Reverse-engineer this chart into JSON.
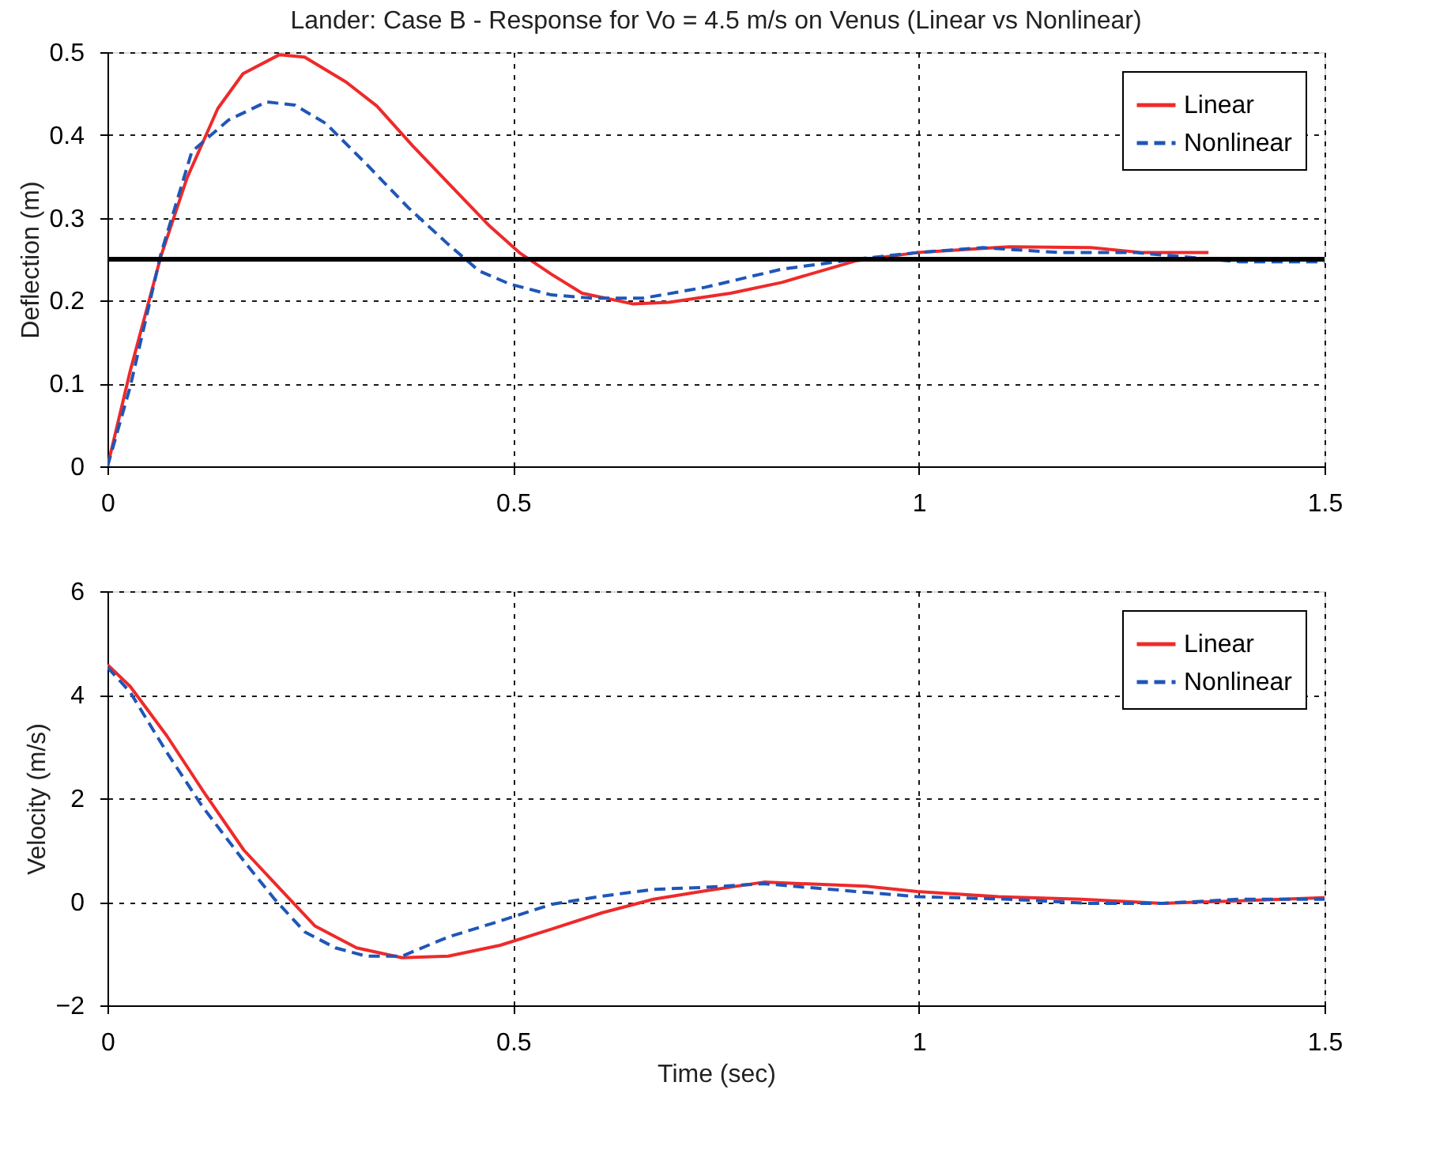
{
  "chart_data": [
    {
      "type": "line",
      "title": "Lander:  Case B - Response for Vo = 4.5 m/s on Venus (Linear vs Nonlinear)",
      "ylabel": "Deflection (m)",
      "xlim": [
        0,
        1.5
      ],
      "xticks": [
        0,
        0.5,
        1,
        1.5
      ],
      "ylim": [
        0,
        0.5
      ],
      "yticks": [
        0,
        0.1,
        0.2,
        0.3,
        0.4,
        0.5
      ],
      "grid": true,
      "legend": "top right",
      "ref_lines": [
        {
          "axis": "y",
          "value": 0.25,
          "color": "#000000"
        }
      ],
      "series": [
        {
          "name": "Linear",
          "color": "#ee2a2a",
          "line_style": "solid",
          "x": [
            0,
            0.028,
            0.066,
            0.098,
            0.136,
            0.167,
            0.212,
            0.243,
            0.294,
            0.332,
            0.376,
            0.42,
            0.471,
            0.509,
            0.547,
            0.585,
            0.648,
            0.692,
            0.768,
            0.831,
            0.922,
            0.998,
            1.111,
            1.212,
            1.276,
            1.357
          ],
          "values": [
            0,
            0.115,
            0.254,
            0.348,
            0.432,
            0.474,
            0.497,
            0.494,
            0.464,
            0.435,
            0.387,
            0.342,
            0.29,
            0.257,
            0.232,
            0.209,
            0.196,
            0.198,
            0.209,
            0.222,
            0.248,
            0.258,
            0.265,
            0.264,
            0.258,
            0.258
          ]
        },
        {
          "name": "Nonlinear",
          "color": "#1f56b8",
          "line_style": "dashed",
          "x": [
            0,
            0.028,
            0.066,
            0.104,
            0.149,
            0.196,
            0.231,
            0.269,
            0.319,
            0.37,
            0.42,
            0.458,
            0.496,
            0.547,
            0.597,
            0.66,
            0.736,
            0.831,
            0.922,
            0.998,
            1.079,
            1.174,
            1.268,
            1.395,
            1.5
          ],
          "values": [
            0,
            0.096,
            0.257,
            0.38,
            0.418,
            0.44,
            0.436,
            0.414,
            0.365,
            0.313,
            0.268,
            0.236,
            0.22,
            0.207,
            0.203,
            0.203,
            0.216,
            0.238,
            0.25,
            0.258,
            0.264,
            0.258,
            0.258,
            0.247,
            0.247
          ]
        }
      ]
    },
    {
      "type": "line",
      "xlabel": "Time (sec)",
      "ylabel": "Velocity (m/s)",
      "xlim": [
        0,
        1.5
      ],
      "xticks": [
        0,
        0.5,
        1,
        1.5
      ],
      "ylim": [
        -2,
        6
      ],
      "yticks": [
        -2,
        0,
        2,
        4,
        6
      ],
      "grid": true,
      "legend": "top right",
      "series": [
        {
          "name": "Linear",
          "color": "#ee2a2a",
          "line_style": "solid",
          "x": [
            0,
            0.028,
            0.073,
            0.117,
            0.168,
            0.212,
            0.256,
            0.307,
            0.363,
            0.42,
            0.484,
            0.547,
            0.61,
            0.673,
            0.736,
            0.809,
            0.935,
            0.998,
            1.098,
            1.2,
            1.3,
            1.395,
            1.5
          ],
          "values": [
            4.58,
            4.16,
            3.21,
            2.16,
            1.0,
            0.26,
            -0.47,
            -0.89,
            -1.08,
            -1.05,
            -0.84,
            -0.53,
            -0.21,
            0.05,
            0.21,
            0.38,
            0.3,
            0.2,
            0.1,
            0.05,
            -0.03,
            0.02,
            0.08
          ]
        },
        {
          "name": "Nonlinear",
          "color": "#1f56b8",
          "line_style": "dashed",
          "x": [
            0,
            0.028,
            0.073,
            0.117,
            0.168,
            0.206,
            0.243,
            0.281,
            0.319,
            0.363,
            0.42,
            0.484,
            0.547,
            0.61,
            0.673,
            0.736,
            0.809,
            0.922,
            0.998,
            1.11,
            1.21,
            1.3,
            1.395,
            1.5
          ],
          "values": [
            4.53,
            4.05,
            2.89,
            1.84,
            0.79,
            0.05,
            -0.58,
            -0.89,
            -1.05,
            -1.05,
            -0.68,
            -0.37,
            -0.05,
            0.11,
            0.24,
            0.28,
            0.35,
            0.2,
            0.1,
            0.05,
            -0.03,
            -0.03,
            0.05,
            0.05
          ]
        }
      ]
    }
  ]
}
